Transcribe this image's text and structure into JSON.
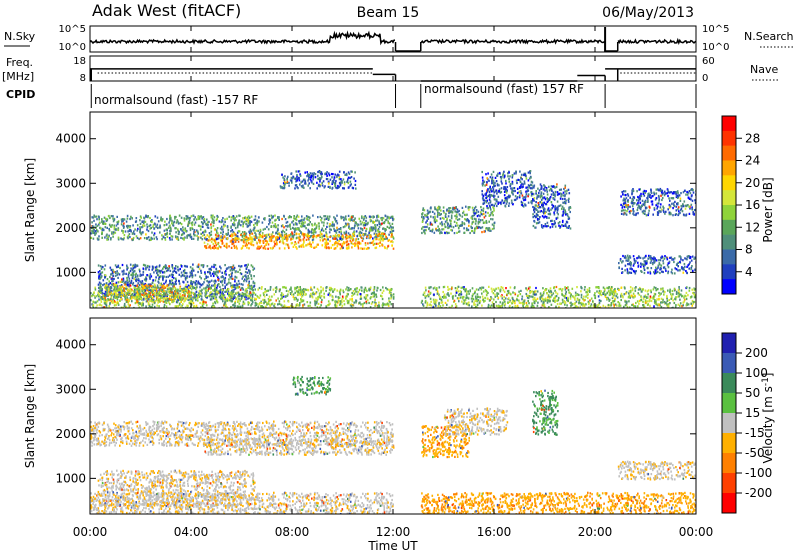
{
  "header": {
    "station": "Adak West (fitACF)",
    "beam": "Beam 15",
    "date": "06/May/2013"
  },
  "chart_data": {
    "type": "heatmap",
    "x_axis": {
      "label": "Time UT",
      "range_hours": [
        0,
        24
      ],
      "ticks": [
        {
          "h": 0,
          "label": "00:00"
        },
        {
          "h": 4,
          "label": "04:00"
        },
        {
          "h": 8,
          "label": "08:00"
        },
        {
          "h": 12,
          "label": "12:00"
        },
        {
          "h": 16,
          "label": "16:00"
        },
        {
          "h": 20,
          "label": "20:00"
        },
        {
          "h": 24,
          "label": "00:00"
        }
      ]
    },
    "noise_panel": {
      "left_label": "N.Sky",
      "right_label": "N.Search",
      "left_ticks": [
        "10^5",
        "10^0"
      ],
      "right_ticks": [
        "10^5",
        "10^0"
      ]
    },
    "freq_panel": {
      "left_label": "Freq.",
      "left_unit": "[MHz]",
      "right_label": "Nave",
      "left_ticks": [
        18,
        8
      ],
      "right_ticks": [
        60,
        0
      ],
      "freq_steps": [
        {
          "from": 0.0,
          "to": 11.2,
          "value": 13.5
        },
        {
          "from": 11.2,
          "to": 12.1,
          "value": 11.0
        },
        {
          "from": 13.1,
          "to": 19.3,
          "value": 8.0
        },
        {
          "from": 19.3,
          "to": 20.4,
          "value": 10.5
        },
        {
          "from": 20.4,
          "to": 20.9,
          "value": 13.5
        },
        {
          "from": 20.9,
          "to": 24.0,
          "value": 13.5
        }
      ]
    },
    "cpid_panel": {
      "label": "CPID",
      "segments": [
        {
          "from": 0.0,
          "to": 12.1,
          "text": "normalsound (fast) -157 RF"
        },
        {
          "from": 13.1,
          "to": 24.0,
          "text": "normalsound (fast) 157 RF"
        }
      ]
    },
    "power_panel": {
      "ylabel": "Slant Range [km]",
      "yticks": [
        1000,
        2000,
        3000,
        4000
      ],
      "ylim": [
        200,
        4600
      ],
      "colorbar": {
        "label": "Power [dB]",
        "ticks": [
          4,
          8,
          12,
          16,
          20,
          24,
          28
        ],
        "range": [
          0,
          32
        ],
        "colors": [
          "#0000ff",
          "#1f3fbf",
          "#3a6aa8",
          "#4f8f7a",
          "#5aa65a",
          "#8fd33a",
          "#d4e63a",
          "#ffd600",
          "#ffa500",
          "#ff6a00",
          "#ff3300",
          "#ff0000"
        ]
      },
      "regions": [
        {
          "t": [
            0.0,
            12.0
          ],
          "r": [
            1750,
            2300
          ],
          "v": 10
        },
        {
          "t": [
            4.5,
            12.0
          ],
          "r": [
            1550,
            1900
          ],
          "v": 22
        },
        {
          "t": [
            0.3,
            6.5
          ],
          "r": [
            400,
            1200
          ],
          "v": 7
        },
        {
          "t": [
            0.5,
            4.0
          ],
          "r": [
            350,
            750
          ],
          "v": 22
        },
        {
          "t": [
            0.0,
            12.0
          ],
          "r": [
            200,
            700
          ],
          "v": 14
        },
        {
          "t": [
            7.5,
            10.5
          ],
          "r": [
            2900,
            3300
          ],
          "v": 6
        },
        {
          "t": [
            13.1,
            16.0
          ],
          "r": [
            1900,
            2500
          ],
          "v": 10
        },
        {
          "t": [
            15.5,
            17.5
          ],
          "r": [
            2500,
            3300
          ],
          "v": 6
        },
        {
          "t": [
            17.5,
            19.0
          ],
          "r": [
            2000,
            3000
          ],
          "v": 6
        },
        {
          "t": [
            13.1,
            24.0
          ],
          "r": [
            200,
            700
          ],
          "v": 14
        },
        {
          "t": [
            20.9,
            24.0
          ],
          "r": [
            1000,
            1400
          ],
          "v": 6
        },
        {
          "t": [
            21.0,
            24.0
          ],
          "r": [
            2300,
            2900
          ],
          "v": 6
        }
      ]
    },
    "velocity_panel": {
      "ylabel": "Slant Range [km]",
      "yticks": [
        1000,
        2000,
        3000,
        4000
      ],
      "ylim": [
        200,
        4600
      ],
      "colorbar": {
        "label": "Velocity [m s^-1]",
        "ticks": [
          200,
          100,
          50,
          15,
          -15,
          -50,
          -100,
          -200
        ],
        "colors": [
          "#2020b0",
          "#3a5ab5",
          "#3a8a5a",
          "#5ac040",
          "#c0c0c0",
          "#ffb000",
          "#ff8000",
          "#ff4000",
          "#ff0000"
        ]
      },
      "regions": [
        {
          "t": [
            0.0,
            12.0
          ],
          "r": [
            1750,
            2300
          ],
          "v": -5
        },
        {
          "t": [
            4.5,
            12.0
          ],
          "r": [
            1550,
            1900
          ],
          "v": -5
        },
        {
          "t": [
            0.3,
            6.5
          ],
          "r": [
            400,
            1200
          ],
          "v": -5
        },
        {
          "t": [
            0.0,
            12.0
          ],
          "r": [
            200,
            700
          ],
          "v": -5
        },
        {
          "t": [
            8.0,
            9.5
          ],
          "r": [
            2900,
            3300
          ],
          "v": 60
        },
        {
          "t": [
            13.1,
            15.0
          ],
          "r": [
            1500,
            2200
          ],
          "v": -40
        },
        {
          "t": [
            14.0,
            16.5
          ],
          "r": [
            2000,
            2600
          ],
          "v": -5
        },
        {
          "t": [
            17.5,
            18.5
          ],
          "r": [
            2000,
            3000
          ],
          "v": 60
        },
        {
          "t": [
            20.9,
            24.0
          ],
          "r": [
            1000,
            1400
          ],
          "v": -5
        },
        {
          "t": [
            13.1,
            24.0
          ],
          "r": [
            200,
            700
          ],
          "v": -40
        }
      ]
    }
  }
}
